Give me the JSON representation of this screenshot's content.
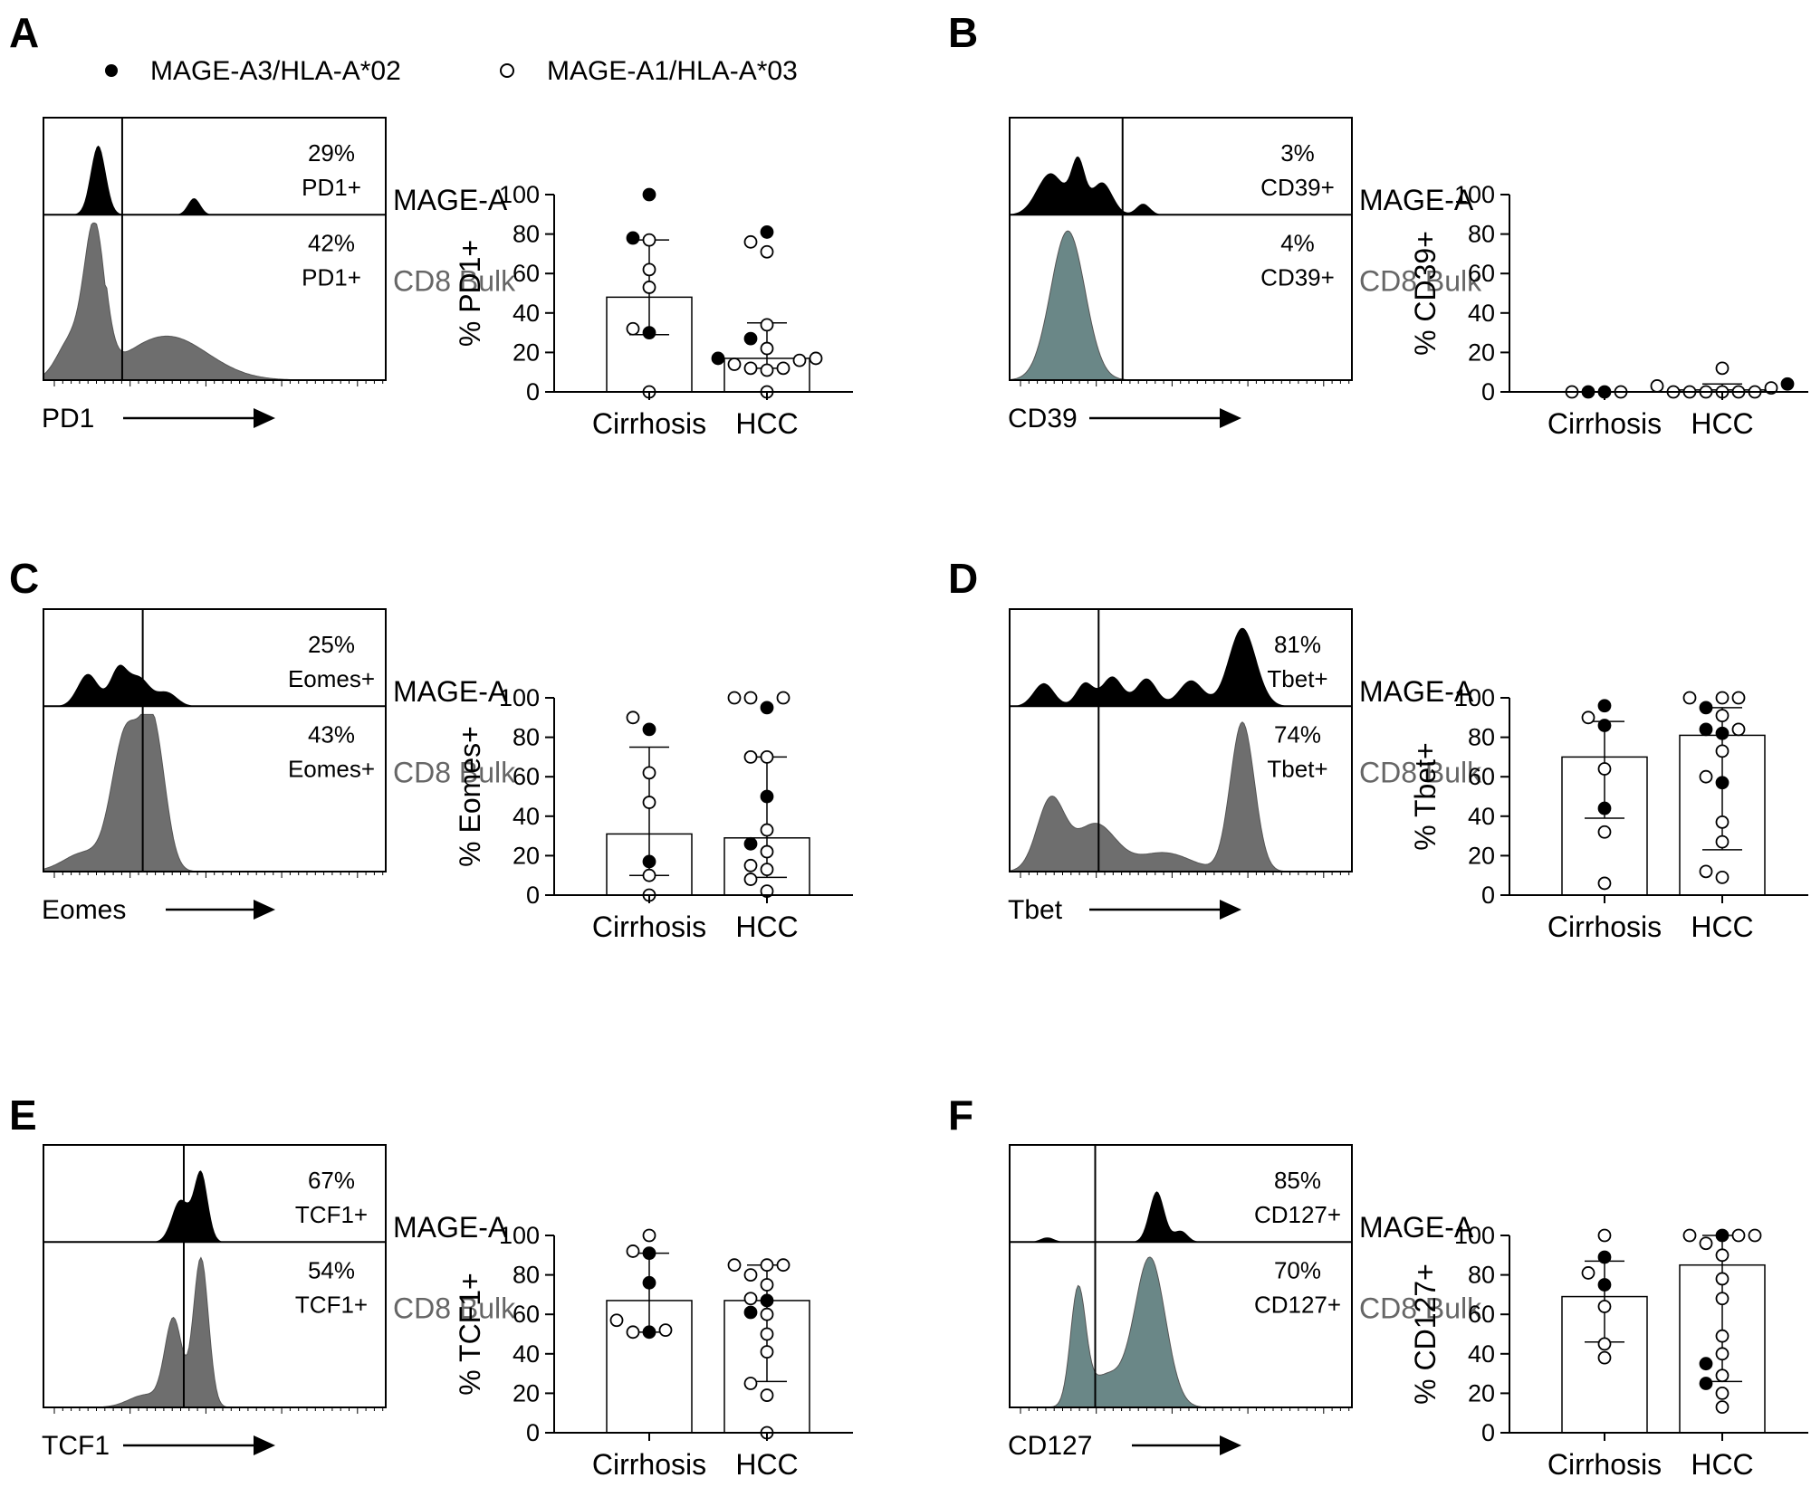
{
  "legend": {
    "filled_label": "MAGE-A3/HLA-A*02",
    "open_label": "MAGE-A1/HLA-A*03"
  },
  "colors": {
    "mage_fill": "#000000",
    "bulk_fill": "#6e6e6e",
    "bulk_fill_teal": "#6a8787",
    "bulk_label": "#666666"
  },
  "panels": [
    {
      "letter": "A",
      "histogram": {
        "marker": "PD1",
        "top_label": "MAGE-A",
        "bottom_label": "CD8 Bulk",
        "top_pct": "29%",
        "top_pos": "PD1+",
        "bottom_pct": "42%",
        "bottom_pos": "PD1+"
      },
      "dotplot": {
        "ylabel": "% PD1+",
        "categories": [
          "Cirrhosis",
          "HCC"
        ],
        "yticks": [
          "0",
          "20",
          "40",
          "60",
          "80",
          "100"
        ]
      }
    },
    {
      "letter": "B",
      "histogram": {
        "marker": "CD39",
        "top_label": "MAGE-A",
        "bottom_label": "CD8 Bulk",
        "top_pct": "3%",
        "top_pos": "CD39+",
        "bottom_pct": "4%",
        "bottom_pos": "CD39+"
      },
      "dotplot": {
        "ylabel": "% CD39+",
        "categories": [
          "Cirrhosis",
          "HCC"
        ],
        "yticks": [
          "0",
          "20",
          "40",
          "60",
          "80",
          "100"
        ]
      }
    },
    {
      "letter": "C",
      "histogram": {
        "marker": "Eomes",
        "top_label": "MAGE-A",
        "bottom_label": "CD8 Bulk",
        "top_pct": "25%",
        "top_pos": "Eomes+",
        "bottom_pct": "43%",
        "bottom_pos": "Eomes+"
      },
      "dotplot": {
        "ylabel": "% Eomes+",
        "categories": [
          "Cirrhosis",
          "HCC"
        ],
        "yticks": [
          "0",
          "20",
          "40",
          "60",
          "80",
          "100"
        ]
      }
    },
    {
      "letter": "D",
      "histogram": {
        "marker": "Tbet",
        "top_label": "MAGE-A",
        "bottom_label": "CD8 Bulk",
        "top_pct": "81%",
        "top_pos": "Tbet+",
        "bottom_pct": "74%",
        "bottom_pos": "Tbet+"
      },
      "dotplot": {
        "ylabel": "% Tbet+",
        "categories": [
          "Cirrhosis",
          "HCC"
        ],
        "yticks": [
          "0",
          "20",
          "40",
          "60",
          "80",
          "100"
        ]
      }
    },
    {
      "letter": "E",
      "histogram": {
        "marker": "TCF1",
        "top_label": "MAGE-A",
        "bottom_label": "CD8 Bulk",
        "top_pct": "67%",
        "top_pos": "TCF1+",
        "bottom_pct": "54%",
        "bottom_pos": "TCF1+"
      },
      "dotplot": {
        "ylabel": "% TCF1+",
        "categories": [
          "Cirrhosis",
          "HCC"
        ],
        "yticks": [
          "0",
          "20",
          "40",
          "60",
          "80",
          "100"
        ]
      }
    },
    {
      "letter": "F",
      "histogram": {
        "marker": "CD127",
        "top_label": "MAGE-A",
        "bottom_label": "CD8 Bulk",
        "top_pct": "85%",
        "top_pos": "CD127+",
        "bottom_pct": "70%",
        "bottom_pos": "CD127+"
      },
      "dotplot": {
        "ylabel": "% CD127+",
        "categories": [
          "Cirrhosis",
          "HCC"
        ],
        "yticks": [
          "0",
          "20",
          "40",
          "60",
          "80",
          "100"
        ]
      }
    }
  ],
  "chart_data": [
    {
      "panel": "A",
      "type": "scatter",
      "ylabel": "% PD1+",
      "ylim": [
        0,
        100
      ],
      "categories": [
        "Cirrhosis",
        "HCC"
      ],
      "groups": [
        {
          "category": "Cirrhosis",
          "median": 48,
          "iqr": [
            29,
            77
          ],
          "filled": [
            100,
            78,
            30
          ],
          "open": [
            77,
            62,
            53,
            32,
            0
          ]
        },
        {
          "category": "HCC",
          "median": 17,
          "iqr": [
            12,
            35
          ],
          "filled": [
            81,
            27,
            17
          ],
          "open": [
            76,
            71,
            34,
            22,
            17,
            16,
            14,
            12,
            12,
            11,
            0
          ]
        }
      ]
    },
    {
      "panel": "B",
      "type": "scatter",
      "ylabel": "% CD39+",
      "ylim": [
        0,
        100
      ],
      "categories": [
        "Cirrhosis",
        "HCC"
      ],
      "groups": [
        {
          "category": "Cirrhosis",
          "median": 0,
          "iqr": [
            0,
            0
          ],
          "filled": [
            0,
            0
          ],
          "open": [
            0,
            0
          ]
        },
        {
          "category": "HCC",
          "median": 1,
          "iqr": [
            0,
            4
          ],
          "filled": [
            4
          ],
          "open": [
            12,
            3,
            2,
            0,
            0,
            0,
            0,
            0,
            0
          ]
        }
      ]
    },
    {
      "panel": "C",
      "type": "scatter",
      "ylabel": "% Eomes+",
      "ylim": [
        0,
        100
      ],
      "categories": [
        "Cirrhosis",
        "HCC"
      ],
      "groups": [
        {
          "category": "Cirrhosis",
          "median": 31,
          "iqr": [
            10,
            75
          ],
          "filled": [
            84,
            17
          ],
          "open": [
            90,
            62,
            47,
            10,
            0
          ]
        },
        {
          "category": "HCC",
          "median": 29,
          "iqr": [
            9,
            70
          ],
          "filled": [
            95,
            50,
            26
          ],
          "open": [
            100,
            100,
            100,
            70,
            70,
            33,
            22,
            15,
            13,
            8,
            2
          ]
        }
      ]
    },
    {
      "panel": "D",
      "type": "scatter",
      "ylabel": "% Tbet+",
      "ylim": [
        0,
        100
      ],
      "categories": [
        "Cirrhosis",
        "HCC"
      ],
      "groups": [
        {
          "category": "Cirrhosis",
          "median": 70,
          "iqr": [
            39,
            88
          ],
          "filled": [
            96,
            86,
            44
          ],
          "open": [
            90,
            64,
            32,
            6
          ]
        },
        {
          "category": "HCC",
          "median": 81,
          "iqr": [
            23,
            95
          ],
          "filled": [
            95,
            84,
            82,
            57
          ],
          "open": [
            100,
            100,
            100,
            91,
            84,
            73,
            60,
            37,
            27,
            12,
            9
          ]
        }
      ]
    },
    {
      "panel": "E",
      "type": "scatter",
      "ylabel": "% TCF1+",
      "ylim": [
        0,
        100
      ],
      "categories": [
        "Cirrhosis",
        "HCC"
      ],
      "groups": [
        {
          "category": "Cirrhosis",
          "median": 67,
          "iqr": [
            51,
            91
          ],
          "filled": [
            91,
            76,
            51
          ],
          "open": [
            100,
            92,
            57,
            52,
            51
          ]
        },
        {
          "category": "HCC",
          "median": 67,
          "iqr": [
            26,
            85
          ],
          "filled": [
            67,
            61
          ],
          "open": [
            85,
            85,
            85,
            80,
            75,
            68,
            60,
            50,
            41,
            25,
            19,
            0
          ]
        }
      ]
    },
    {
      "panel": "F",
      "type": "scatter",
      "ylabel": "% CD127+",
      "ylim": [
        0,
        100
      ],
      "categories": [
        "Cirrhosis",
        "HCC"
      ],
      "groups": [
        {
          "category": "Cirrhosis",
          "median": 69,
          "iqr": [
            46,
            87
          ],
          "filled": [
            89,
            75
          ],
          "open": [
            100,
            81,
            64,
            45,
            38
          ]
        },
        {
          "category": "HCC",
          "median": 85,
          "iqr": [
            26,
            100
          ],
          "filled": [
            100,
            35,
            25
          ],
          "open": [
            100,
            100,
            100,
            96,
            90,
            78,
            68,
            49,
            40,
            29,
            20,
            13
          ]
        }
      ]
    }
  ]
}
